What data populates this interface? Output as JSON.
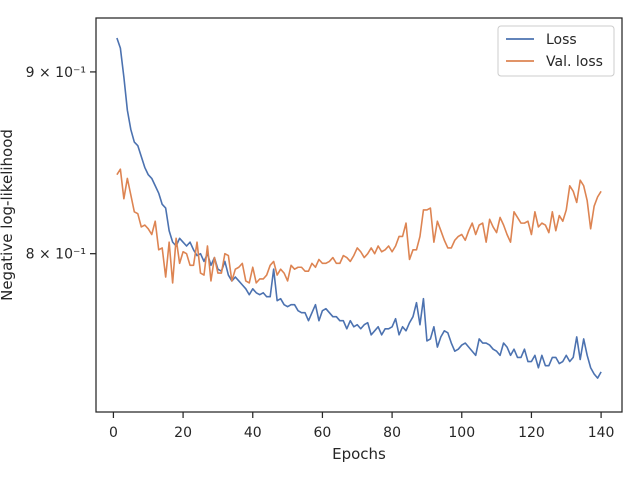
{
  "chart_data": {
    "type": "line",
    "title": "",
    "xlabel": "Epochs",
    "ylabel": "Negative log-likelihood",
    "xlim": [
      -5,
      146
    ],
    "ylim": [
      0.722,
      0.932
    ],
    "yscale": "log",
    "grid": false,
    "legend_position": "top-right",
    "x_ticks": [
      0,
      20,
      40,
      60,
      80,
      100,
      120,
      140
    ],
    "x_tick_labels": [
      "0",
      "20",
      "40",
      "60",
      "80",
      "100",
      "120",
      "140"
    ],
    "y_ticks": [
      0.8,
      0.9
    ],
    "y_tick_labels": [
      "8 × 10⁻¹",
      "9 × 10⁻¹"
    ],
    "colors": {
      "Loss": "#4c72b0",
      "Val. loss": "#dd8452",
      "axes": "#262626"
    },
    "x": [
      1,
      2,
      3,
      4,
      5,
      6,
      7,
      8,
      9,
      10,
      11,
      12,
      13,
      14,
      15,
      16,
      17,
      18,
      19,
      20,
      21,
      22,
      23,
      24,
      25,
      26,
      27,
      28,
      29,
      30,
      31,
      32,
      33,
      34,
      35,
      36,
      37,
      38,
      39,
      40,
      41,
      42,
      43,
      44,
      45,
      46,
      47,
      48,
      49,
      50,
      51,
      52,
      53,
      54,
      55,
      56,
      57,
      58,
      59,
      60,
      61,
      62,
      63,
      64,
      65,
      66,
      67,
      68,
      69,
      70,
      71,
      72,
      73,
      74,
      75,
      76,
      77,
      78,
      79,
      80,
      81,
      82,
      83,
      84,
      85,
      86,
      87,
      88,
      89,
      90,
      91,
      92,
      93,
      94,
      95,
      96,
      97,
      98,
      99,
      100,
      101,
      102,
      103,
      104,
      105,
      106,
      107,
      108,
      109,
      110,
      111,
      112,
      113,
      114,
      115,
      116,
      117,
      118,
      119,
      120,
      121,
      122,
      123,
      124,
      125,
      126,
      127,
      128,
      129,
      130,
      131,
      132,
      133,
      134,
      135,
      136,
      137,
      138,
      139,
      140
    ],
    "series": [
      {
        "name": "Loss",
        "values": [
          0.92,
          0.914,
          0.897,
          0.878,
          0.867,
          0.86,
          0.858,
          0.852,
          0.846,
          0.842,
          0.84,
          0.836,
          0.832,
          0.826,
          0.824,
          0.812,
          0.806,
          0.804,
          0.808,
          0.806,
          0.804,
          0.806,
          0.802,
          0.799,
          0.8,
          0.796,
          0.8,
          0.794,
          0.798,
          0.792,
          0.791,
          0.796,
          0.789,
          0.786,
          0.788,
          0.786,
          0.784,
          0.782,
          0.779,
          0.782,
          0.78,
          0.779,
          0.78,
          0.778,
          0.778,
          0.792,
          0.776,
          0.777,
          0.774,
          0.773,
          0.774,
          0.774,
          0.771,
          0.77,
          0.77,
          0.766,
          0.77,
          0.774,
          0.766,
          0.771,
          0.772,
          0.77,
          0.768,
          0.768,
          0.766,
          0.766,
          0.762,
          0.766,
          0.763,
          0.764,
          0.762,
          0.764,
          0.765,
          0.759,
          0.761,
          0.763,
          0.759,
          0.762,
          0.762,
          0.763,
          0.767,
          0.759,
          0.763,
          0.761,
          0.765,
          0.768,
          0.775,
          0.764,
          0.777,
          0.756,
          0.757,
          0.763,
          0.753,
          0.758,
          0.761,
          0.76,
          0.755,
          0.751,
          0.752,
          0.754,
          0.755,
          0.753,
          0.751,
          0.749,
          0.757,
          0.755,
          0.755,
          0.754,
          0.752,
          0.751,
          0.749,
          0.755,
          0.753,
          0.749,
          0.752,
          0.748,
          0.748,
          0.752,
          0.746,
          0.746,
          0.749,
          0.743,
          0.749,
          0.744,
          0.744,
          0.748,
          0.748,
          0.745,
          0.746,
          0.749,
          0.746,
          0.748,
          0.758,
          0.747,
          0.757,
          0.749,
          0.743,
          0.74,
          0.738,
          0.741
        ]
      },
      {
        "name": "Val. loss",
        "values": [
          0.842,
          0.845,
          0.829,
          0.84,
          0.831,
          0.822,
          0.821,
          0.814,
          0.815,
          0.813,
          0.81,
          0.817,
          0.802,
          0.803,
          0.788,
          0.806,
          0.785,
          0.808,
          0.795,
          0.801,
          0.8,
          0.794,
          0.794,
          0.806,
          0.79,
          0.789,
          0.804,
          0.786,
          0.798,
          0.79,
          0.79,
          0.8,
          0.799,
          0.786,
          0.792,
          0.793,
          0.795,
          0.786,
          0.785,
          0.793,
          0.785,
          0.787,
          0.787,
          0.789,
          0.794,
          0.796,
          0.789,
          0.792,
          0.79,
          0.786,
          0.794,
          0.792,
          0.793,
          0.793,
          0.791,
          0.791,
          0.795,
          0.793,
          0.797,
          0.795,
          0.795,
          0.796,
          0.798,
          0.795,
          0.795,
          0.799,
          0.798,
          0.796,
          0.799,
          0.803,
          0.801,
          0.798,
          0.8,
          0.803,
          0.8,
          0.804,
          0.801,
          0.802,
          0.804,
          0.801,
          0.804,
          0.809,
          0.809,
          0.816,
          0.797,
          0.802,
          0.802,
          0.809,
          0.823,
          0.823,
          0.824,
          0.806,
          0.817,
          0.812,
          0.807,
          0.803,
          0.803,
          0.807,
          0.809,
          0.81,
          0.807,
          0.812,
          0.816,
          0.81,
          0.815,
          0.816,
          0.806,
          0.818,
          0.814,
          0.811,
          0.819,
          0.815,
          0.81,
          0.806,
          0.822,
          0.819,
          0.816,
          0.816,
          0.817,
          0.81,
          0.822,
          0.814,
          0.816,
          0.815,
          0.811,
          0.822,
          0.812,
          0.82,
          0.817,
          0.823,
          0.836,
          0.833,
          0.827,
          0.839,
          0.836,
          0.828,
          0.813,
          0.825,
          0.83,
          0.833
        ]
      }
    ]
  }
}
